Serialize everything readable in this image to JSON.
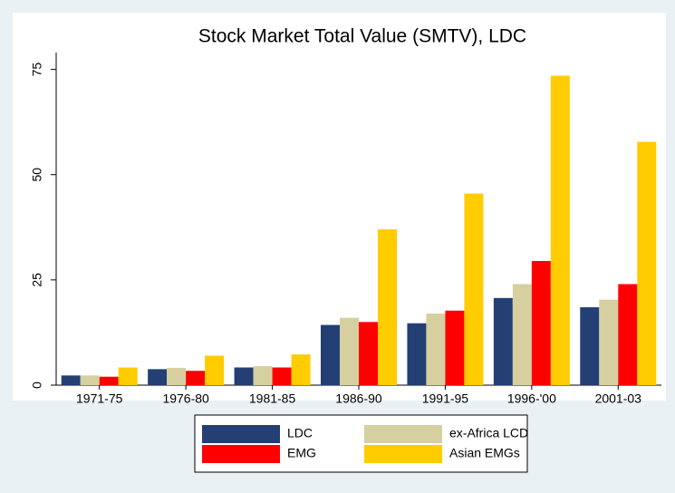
{
  "chart_data": {
    "type": "bar",
    "title": "Stock Market Total Value (SMTV), LDC",
    "categories": [
      "1971-75",
      "1976-80",
      "1981-85",
      "1986-90",
      "1991-95",
      "1996-'00",
      "2001-03"
    ],
    "series": [
      {
        "name": "LDC",
        "color": "#233f73",
        "values": [
          2.3,
          3.8,
          4.2,
          14.3,
          14.7,
          20.7,
          18.5
        ]
      },
      {
        "name": "ex-Africa LCD",
        "color": "#d6cfa0",
        "values": [
          2.3,
          4.1,
          4.5,
          16.0,
          17.0,
          24.0,
          20.3
        ]
      },
      {
        "name": "EMG",
        "color": "#ff0000",
        "values": [
          2.0,
          3.4,
          4.2,
          15.0,
          17.7,
          29.5,
          24.0
        ]
      },
      {
        "name": "Asian EMGs",
        "color": "#ffcc00",
        "values": [
          4.2,
          7.0,
          7.3,
          37.0,
          45.5,
          73.5,
          57.8
        ]
      }
    ],
    "ylim": [
      0,
      79
    ],
    "yticks": [
      0,
      25,
      50,
      75
    ],
    "grid": false,
    "legend": "bottom"
  }
}
